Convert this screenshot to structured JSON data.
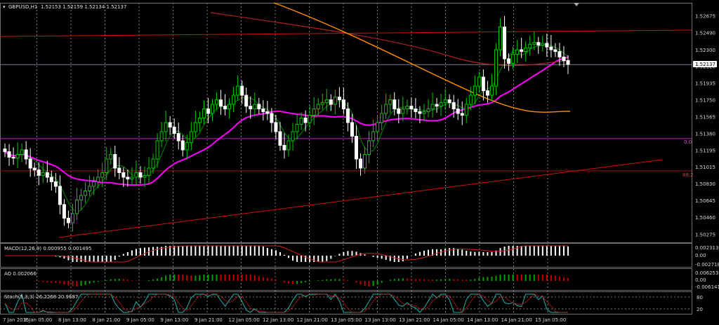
{
  "header": {
    "symbol_label": "GBPUSD,H1",
    "ohlc_text": "1.52153 1.52159 1.52134 1.52137"
  },
  "current_price_label": "1.52137",
  "fibo_labels": [
    "0.0",
    "88.2"
  ],
  "colors": {
    "background": "#000000",
    "candle_up": "#00c800",
    "candle_down": "#ffffff",
    "ma_fast": "#008800",
    "ma_magenta": "#ff00ff",
    "ma_orange": "#ff8c00",
    "ma_red": "#b02020",
    "trendline": "#d01010",
    "fibo": "#cc00cc",
    "grid": "#808080",
    "macd_signal": "#d02020",
    "ao_up": "#00a000",
    "ao_down": "#c00000",
    "stoch_main": "#20b2aa",
    "stoch_signal": "#d02020"
  },
  "chart_data": {
    "type": "candlestick",
    "symbol": "GBPUSD",
    "timeframe": "H1",
    "price_axis": {
      "ylim": [
        1.502,
        1.528
      ],
      "tick_labels": [
        "1.52675",
        "1.52490",
        "1.52300",
        "1.52120",
        "1.51935",
        "1.51750",
        "1.51565",
        "1.51380",
        "1.51195",
        "1.51015",
        "1.50830",
        "1.50645",
        "1.50460",
        "1.50275"
      ]
    },
    "time_axis_labels": [
      "7 Jan 2015",
      "8 Jan 05:00",
      "8 Jan 13:00",
      "8 Jan 21:00",
      "9 Jan 05:00",
      "9 Jan 13:00",
      "9 Jan 21:00",
      "12 Jan 05:00",
      "12 Jan 13:00",
      "12 Jan 21:00",
      "13 Jan 05:00",
      "13 Jan 13:00",
      "13 Jan 21:00",
      "14 Jan 05:00",
      "14 Jan 13:00",
      "14 Jan 21:00",
      "15 Jan 05:00"
    ],
    "candle_close_path": [
      1.5118,
      1.5112,
      1.5111,
      1.5115,
      1.512,
      1.511,
      1.51,
      1.5098,
      1.5092,
      1.5095,
      1.509,
      1.5085,
      1.508,
      1.506,
      1.5045,
      1.504,
      1.505,
      1.5065,
      1.507,
      1.5075,
      1.508,
      1.5085,
      1.509,
      1.5095,
      1.511,
      1.5115,
      1.51,
      1.5095,
      1.509,
      1.5088,
      1.509,
      1.5095,
      1.509,
      1.5092,
      1.51,
      1.511,
      1.513,
      1.514,
      1.515,
      1.5145,
      1.5138,
      1.513,
      1.512,
      1.5128,
      1.514,
      1.515,
      1.5155,
      1.5165,
      1.516,
      1.517,
      1.5175,
      1.5168,
      1.5165,
      1.517,
      1.518,
      1.519,
      1.518,
      1.5168,
      1.5165,
      1.517,
      1.5165,
      1.5162,
      1.516,
      1.515,
      1.514,
      1.5125,
      1.512,
      1.513,
      1.514,
      1.5148,
      1.5155,
      1.515,
      1.5158,
      1.5165,
      1.517,
      1.5172,
      1.5175,
      1.517,
      1.5178,
      1.5175,
      1.5165,
      1.515,
      1.5135,
      1.511,
      1.51,
      1.5115,
      1.513,
      1.514,
      1.515,
      1.516,
      1.517,
      1.5175,
      1.5165,
      1.516,
      1.5165,
      1.5168,
      1.5165,
      1.5162,
      1.516,
      1.5162,
      1.5165,
      1.517,
      1.5168,
      1.5172,
      1.5175,
      1.5172,
      1.5165,
      1.516,
      1.5158,
      1.517,
      1.518,
      1.519,
      1.52,
      1.5185,
      1.518,
      1.519,
      1.523,
      1.5255,
      1.522,
      1.5215,
      1.5225,
      1.523,
      1.5228,
      1.5232,
      1.5236,
      1.5238,
      1.5235,
      1.5237,
      1.5233,
      1.523,
      1.5228,
      1.5222,
      1.5218,
      1.5214
    ],
    "macd": {
      "label": "MACD(12,26,9) 0.000955 0.001495",
      "ticks": [
        "0.002313",
        "0.00",
        "-0.002718"
      ]
    },
    "ao": {
      "label": "AO 0.002066",
      "ticks": [
        "0.006253",
        "0.00",
        "-0.006141"
      ]
    },
    "stoch": {
      "label": "Stoch(5,3,3) 26.2268 20.9687",
      "ticks": [
        "80",
        "20"
      ]
    },
    "levels_note": "Fibonacci 0.0 at 1.51325, 88.2 at 1.50970"
  }
}
